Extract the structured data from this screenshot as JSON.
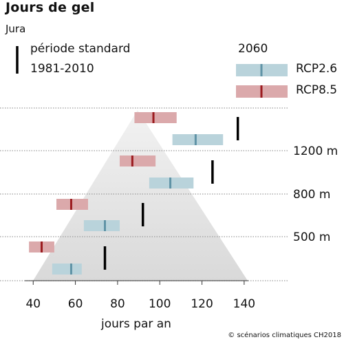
{
  "title": "Jours de gel",
  "subtitle": "Jura",
  "legend": {
    "baseline_label_1": "période standard",
    "baseline_label_2": "1981-2010",
    "future_label": "2060",
    "rcp26_label": "RCP2.6",
    "rcp85_label": "RCP8.5"
  },
  "colors": {
    "rcp26_fill": "#b9d3db",
    "rcp26_median": "#5f93a6",
    "rcp85_fill": "#dba9ab",
    "rcp85_median": "#9b1b1f",
    "baseline": "#000000",
    "mountain_dark": "#d9d9d9",
    "mountain_light": "#f2f2f2"
  },
  "credit": "© scénarios climatiques CH2018",
  "chart_data": {
    "type": "range-bar",
    "xlabel": "jours par an",
    "xlim": [
      36,
      142
    ],
    "xticks": [
      40,
      60,
      80,
      100,
      120,
      140
    ],
    "elevation_labels": [
      "1200 m",
      "800 m",
      "500 m"
    ],
    "levels": [
      {
        "elevation": "> 1200 m",
        "baseline": 137,
        "rcp26": {
          "low": 106,
          "median": 117,
          "high": 130
        },
        "rcp85": {
          "low": 88,
          "median": 97,
          "high": 108
        }
      },
      {
        "elevation": "800-1200 m",
        "baseline": 125,
        "rcp26": {
          "low": 95,
          "median": 105,
          "high": 116
        },
        "rcp85": {
          "low": 81,
          "median": 87,
          "high": 98
        }
      },
      {
        "elevation": "500-800 m",
        "baseline": 92,
        "rcp26": {
          "low": 64,
          "median": 74,
          "high": 81
        },
        "rcp85": {
          "low": 51,
          "median": 58,
          "high": 66
        }
      },
      {
        "elevation": "< 500 m",
        "baseline": 74,
        "rcp26": {
          "low": 49,
          "median": 58,
          "high": 63
        },
        "rcp85": {
          "low": 38,
          "median": 44,
          "high": 50
        }
      }
    ]
  }
}
